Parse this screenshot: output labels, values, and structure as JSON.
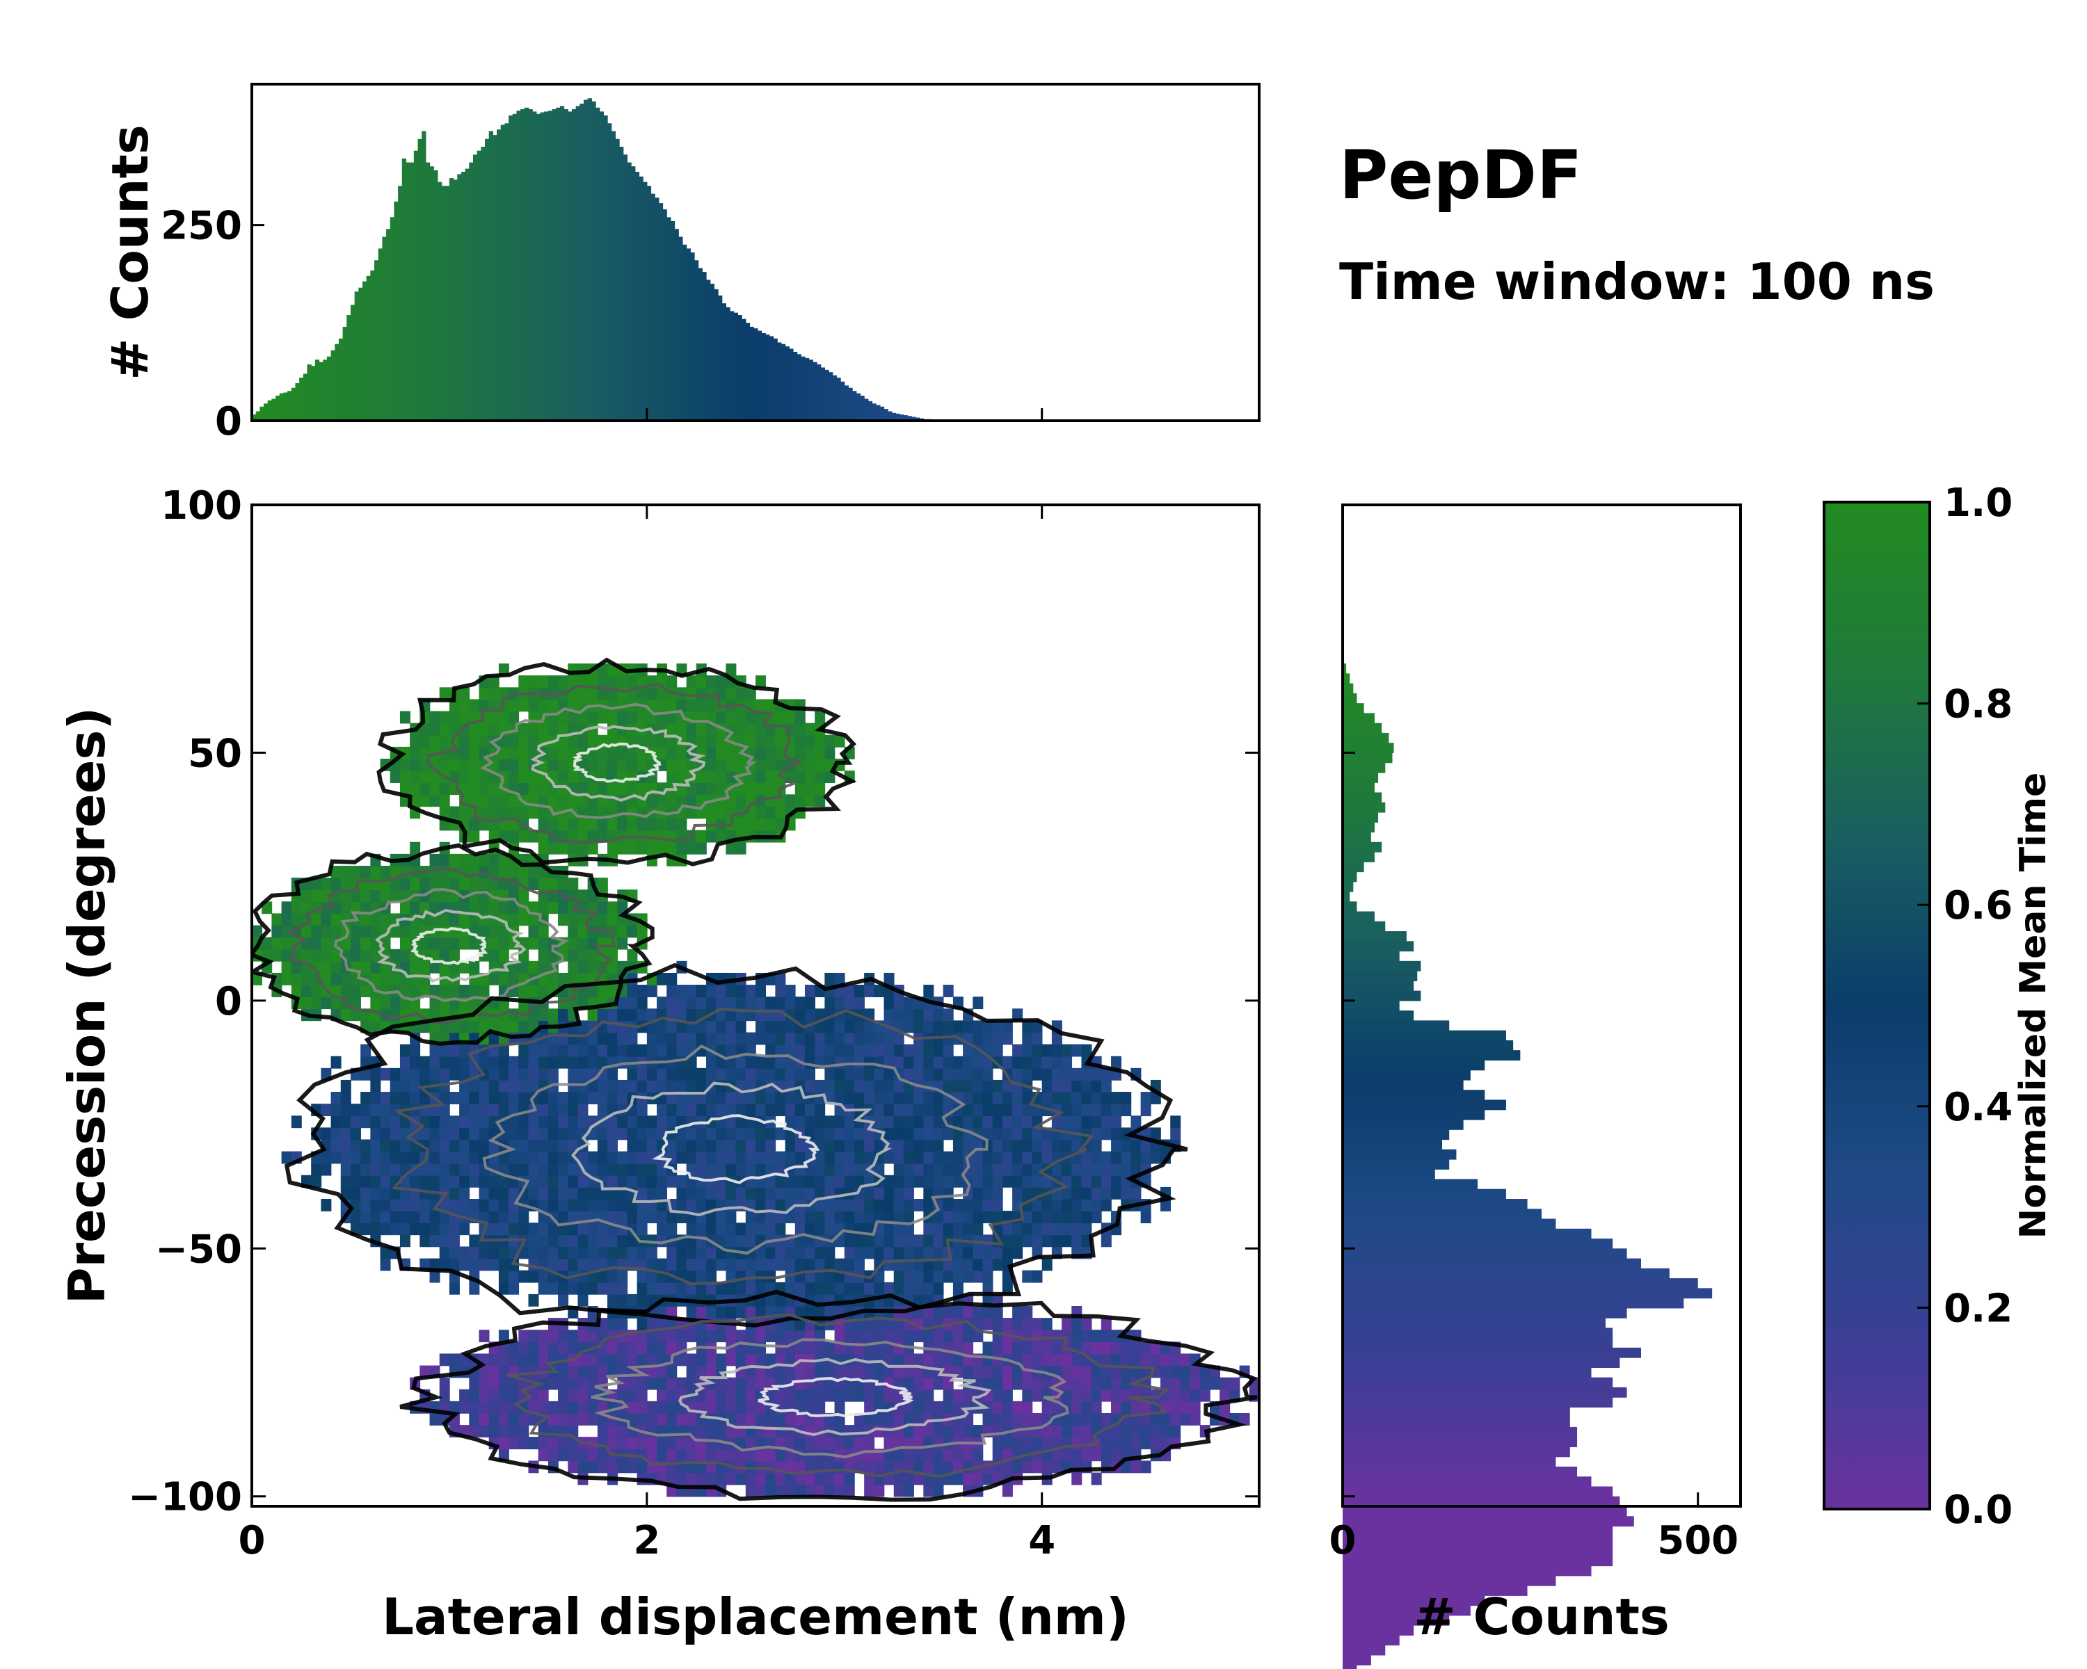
{
  "header": {
    "title": "PepDF",
    "subtitle": "Time window: 100 ns"
  },
  "colors": {
    "cmap": [
      "#6a329f",
      "#3b3f95",
      "#1f4a87",
      "#0b3d6b",
      "#1a5f60",
      "#1f7a3a",
      "#228b22"
    ],
    "contour": [
      "#111111",
      "#555555",
      "#888888",
      "#bbbbbb",
      "#eeeeee"
    ]
  },
  "chart_data": [
    {
      "id": "top_histogram",
      "type": "bar",
      "ylabel": "# Counts",
      "xlim": [
        0,
        5.1
      ],
      "ylim": [
        0,
        430
      ],
      "yticks": [
        {
          "value": 0,
          "label": "0"
        },
        {
          "value": 250,
          "label": "250"
        }
      ],
      "x_start": 0.0,
      "bin_width": 0.02,
      "values": [
        8,
        12,
        18,
        22,
        26,
        28,
        32,
        35,
        36,
        38,
        42,
        48,
        55,
        60,
        72,
        70,
        78,
        75,
        78,
        82,
        90,
        98,
        105,
        120,
        135,
        148,
        165,
        170,
        178,
        185,
        192,
        205,
        220,
        235,
        245,
        260,
        280,
        300,
        335,
        330,
        330,
        345,
        360,
        370,
        330,
        325,
        320,
        305,
        300,
        300,
        310,
        308,
        315,
        318,
        322,
        330,
        340,
        345,
        350,
        360,
        370,
        365,
        372,
        378,
        380,
        390,
        392,
        396,
        398,
        400,
        398,
        395,
        392,
        394,
        395,
        396,
        398,
        400,
        402,
        398,
        395,
        398,
        402,
        405,
        410,
        412,
        408,
        400,
        395,
        390,
        380,
        370,
        360,
        350,
        340,
        330,
        325,
        318,
        312,
        305,
        300,
        290,
        285,
        278,
        270,
        260,
        255,
        245,
        235,
        225,
        220,
        215,
        205,
        195,
        190,
        180,
        175,
        168,
        160,
        150,
        145,
        140,
        138,
        135,
        130,
        125,
        120,
        118,
        115,
        112,
        110,
        108,
        105,
        100,
        98,
        95,
        92,
        88,
        85,
        82,
        80,
        78,
        75,
        72,
        68,
        65,
        62,
        58,
        55,
        50,
        45,
        42,
        38,
        35,
        32,
        28,
        25,
        22,
        20,
        18,
        15,
        12,
        10,
        9,
        8,
        7,
        6,
        5,
        4,
        3,
        2,
        2,
        1,
        1,
        0
      ],
      "x_ticks": [
        0,
        2,
        4
      ]
    },
    {
      "id": "joint_distribution",
      "type": "heatmap",
      "title": "",
      "xlabel": "Lateral displacement (nm)",
      "ylabel": "Precession (degrees)",
      "xlim": [
        0,
        5.1
      ],
      "ylim": [
        -102,
        100
      ],
      "xticks": [
        {
          "value": 0,
          "label": "0"
        },
        {
          "value": 2,
          "label": "2"
        },
        {
          "value": 4,
          "label": "4"
        }
      ],
      "yticks": [
        {
          "value": 100,
          "label": "100"
        },
        {
          "value": 50,
          "label": "50"
        },
        {
          "value": 0,
          "label": "0"
        },
        {
          "value": -50,
          "label": "−50"
        },
        {
          "value": -100,
          "label": "−100"
        }
      ],
      "regions": [
        {
          "name": "upper-green-lobe",
          "time": 0.95,
          "x_range": [
            0.7,
            3.0
          ],
          "y_range": [
            28,
            68
          ]
        },
        {
          "name": "left-green-lobe",
          "time": 0.9,
          "x_range": [
            0.0,
            2.0
          ],
          "y_range": [
            -8,
            30
          ]
        },
        {
          "name": "central-blue-mass",
          "time": 0.4,
          "x_range": [
            0.3,
            4.6
          ],
          "y_range": [
            -65,
            5
          ]
        },
        {
          "name": "lower-purple-tail",
          "time": 0.15,
          "x_range": [
            0.9,
            5.0
          ],
          "y_range": [
            -100,
            -60
          ]
        }
      ]
    },
    {
      "id": "side_histogram",
      "type": "bar",
      "orientation": "horizontal",
      "xlabel": "# Counts",
      "xlim": [
        0,
        560
      ],
      "xticks": [
        {
          "value": 0,
          "label": "0"
        },
        {
          "value": 500,
          "label": "500"
        }
      ],
      "y_start": 68,
      "bin_width": 2,
      "values": [
        5,
        10,
        15,
        20,
        30,
        45,
        55,
        65,
        72,
        70,
        60,
        50,
        45,
        55,
        60,
        50,
        45,
        40,
        55,
        45,
        30,
        20,
        15,
        10,
        20,
        45,
        60,
        90,
        100,
        80,
        110,
        105,
        100,
        110,
        80,
        100,
        150,
        230,
        240,
        250,
        200,
        180,
        170,
        200,
        230,
        200,
        170,
        150,
        140,
        160,
        150,
        130,
        190,
        230,
        260,
        280,
        300,
        350,
        380,
        400,
        420,
        460,
        500,
        520,
        480,
        400,
        370,
        380,
        380,
        420,
        390,
        350,
        380,
        400,
        380,
        320,
        320,
        330,
        330,
        320,
        300,
        330,
        350,
        380,
        390,
        400,
        410,
        380,
        380,
        380,
        380,
        350,
        300,
        260,
        200,
        180,
        150,
        100,
        80,
        60,
        40,
        20,
        10
      ]
    },
    {
      "id": "colorbar",
      "type": "colorbar",
      "label": "Normalized Mean Time",
      "range": [
        0,
        1
      ],
      "ticks": [
        {
          "value": 1.0,
          "label": "1.0"
        },
        {
          "value": 0.8,
          "label": "0.8"
        },
        {
          "value": 0.6,
          "label": "0.6"
        },
        {
          "value": 0.4,
          "label": "0.4"
        },
        {
          "value": 0.2,
          "label": "0.2"
        },
        {
          "value": 0.0,
          "label": "0.0"
        }
      ]
    }
  ]
}
